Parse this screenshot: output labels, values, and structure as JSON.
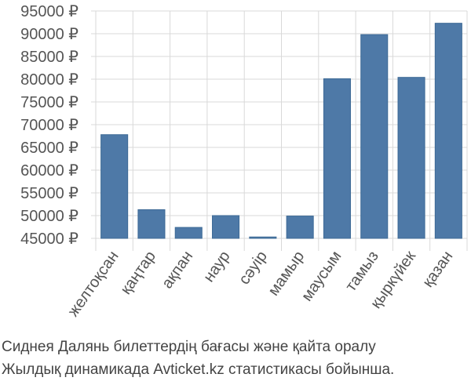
{
  "chart_data": {
    "type": "bar",
    "categories": [
      "желтоқсан",
      "қаңтар",
      "ақпан",
      "наур",
      "сәуір",
      "мамыр",
      "маусым",
      "тамыз",
      "қыркүйек",
      "қазан"
    ],
    "values": [
      67800,
      51300,
      47400,
      50000,
      45300,
      49900,
      80100,
      89800,
      80400,
      92300
    ],
    "yticks": [
      "45000 ₽",
      "50000 ₽",
      "55000 ₽",
      "60000 ₽",
      "65000 ₽",
      "70000 ₽",
      "75000 ₽",
      "80000 ₽",
      "85000 ₽",
      "90000 ₽",
      "95000 ₽"
    ],
    "ylim": [
      45000,
      95000
    ],
    "grid": true,
    "bar_color": "#4e79a7"
  },
  "caption": {
    "line1": "Сиднея Далянь билеттердің бағасы және қайта оралу",
    "line2": "Жылдық динамикада Avticket.kz статистикасы бойынша."
  }
}
